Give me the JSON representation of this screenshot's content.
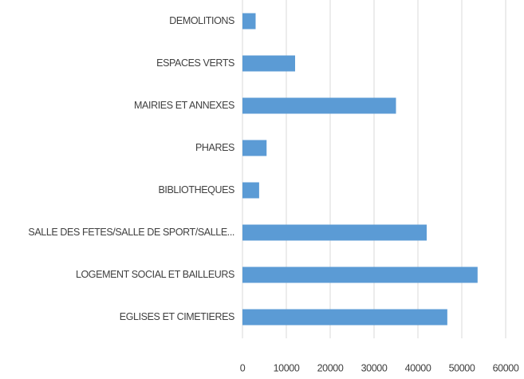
{
  "chart_data": {
    "type": "barh",
    "categories": [
      "DEMOLITIONS",
      "ESPACES VERTS",
      "MAIRIES ET ANNEXES",
      "PHARES",
      "BIBLIOTHEQUES",
      "SALLE DES FETES/SALLE DE SPORT/SALLE...",
      "LOGEMENT SOCIAL ET BAILLEURS",
      "EGLISES ET CIMETIERES"
    ],
    "values": [
      3000,
      12000,
      35000,
      5500,
      3800,
      42000,
      53600,
      46700
    ],
    "color": "#5b9bd5",
    "xlim": [
      0,
      60000
    ],
    "xticks": [
      0,
      10000,
      20000,
      30000,
      40000,
      50000,
      60000
    ],
    "grid": true
  }
}
